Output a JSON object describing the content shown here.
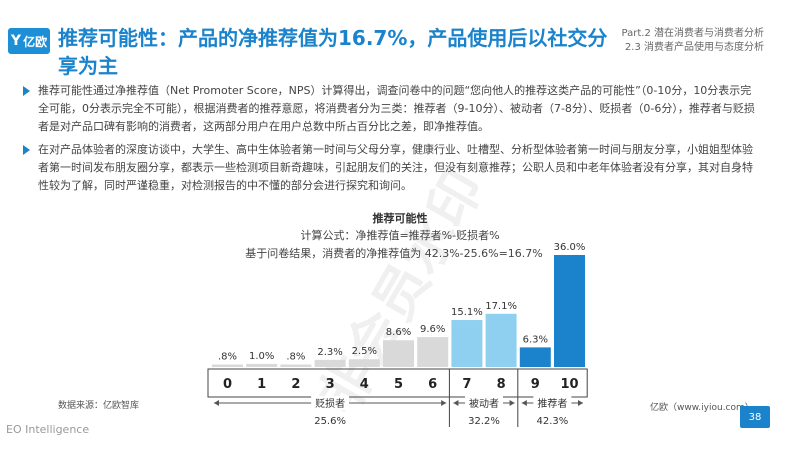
{
  "logo": {
    "icon": "yiou-logo-icon",
    "text": "亿欧"
  },
  "header": {
    "title": "推荐可能性：产品的净推荐值为16.7%，产品使用后以社交分享为主",
    "part_line1": "Part.2 潜在消费者与消费者分析",
    "part_line2": "2.3 消费者产品使用与态度分析"
  },
  "paragraphs": [
    "推荐可能性通过净推荐值（Net Promoter Score，NPS）计算得出，调查问卷中的问题“您向他人的推荐这类产品的可能性”（0-10分，10分表示完全可能，0分表示完全不可能），根据消费者的推荐意愿，将消费者分为三类：推荐者（9-10分）、被动者（7-8分）、贬损者（0-6分），推荐者与贬损者是对产品口碑有影响的消费者，这两部分用户在用户总数中所占百分比之差，即净推荐值。",
    "在对产品体验者的深度访谈中，大学生、高中生体验者第一时间与父母分享，健康行业、吐槽型、分析型体验者第一时间与朋友分享，小姐姐型体验者第一时间发布朋友圈分享，都表示一些检测项目新奇趣味，引起朋友们的关注，但没有刻意推荐；公职人员和中老年体验者没有分享，其对自身特性较为了解，同时严谨稳重，对检测报告的中不懂的部分会进行探究和询问。"
  ],
  "chart_data": {
    "type": "bar",
    "title": "推荐可能性",
    "annotations": [
      "计算公式：净推荐值=推荐者%-贬损者%",
      "基于问卷结果，消费者的净推荐值为 42.3%-25.6%=16.7%"
    ],
    "categories": [
      "0",
      "1",
      "2",
      "3",
      "4",
      "5",
      "6",
      "7",
      "8",
      "9",
      "10"
    ],
    "values": [
      0.8,
      1.0,
      0.8,
      2.3,
      2.5,
      8.6,
      9.6,
      15.1,
      17.1,
      6.3,
      36.0
    ],
    "value_labels": [
      ".8%",
      "1.0%",
      ".8%",
      "2.3%",
      "2.5%",
      "8.6%",
      "9.6%",
      "15.1%",
      "17.1%",
      "6.3%",
      "36.0%"
    ],
    "groups": [
      {
        "name": "贬损者",
        "value": "25.6%",
        "range": [
          0,
          6
        ],
        "color": "#d9d9d9"
      },
      {
        "name": "被动者",
        "value": "32.2%",
        "range": [
          7,
          8
        ],
        "color": "#8fd0f0"
      },
      {
        "name": "推荐者",
        "value": "42.3%",
        "range": [
          9,
          10
        ],
        "color": "#1a83cc"
      }
    ],
    "ylim": [
      0,
      36
    ]
  },
  "footer": {
    "source": "数据来源：亿欧智库",
    "site": "亿欧（www.iyiou.com）",
    "page": "38",
    "brand": "EO Intelligence",
    "watermark": "非会员水印"
  }
}
